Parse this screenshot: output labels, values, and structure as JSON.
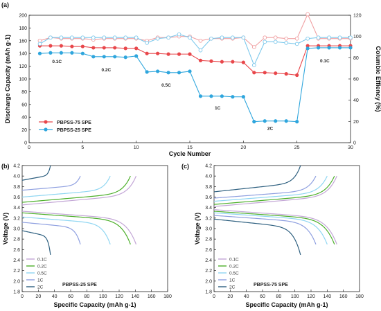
{
  "chart_data": [
    {
      "panel": "(a)",
      "type": "line",
      "xlabel": "Cycle Number",
      "ylabel": "Discharge Capacity (mAh g-1)",
      "y2label": "Columbic Effiency (%)",
      "xlim": [
        0,
        30
      ],
      "ylim": [
        0,
        200
      ],
      "y2lim": [
        0,
        120
      ],
      "xticks": [
        0,
        5,
        10,
        15,
        20,
        25,
        30
      ],
      "yticks": [
        0,
        20,
        40,
        60,
        80,
        100,
        120,
        140,
        160,
        180,
        200
      ],
      "y2ticks": [
        0,
        20,
        40,
        60,
        80,
        100,
        120
      ],
      "x": [
        1,
        2,
        3,
        4,
        5,
        6,
        7,
        8,
        9,
        10,
        11,
        12,
        13,
        14,
        15,
        16,
        17,
        18,
        19,
        20,
        21,
        22,
        23,
        24,
        25,
        26,
        27,
        28,
        29,
        30
      ],
      "series": [
        {
          "name": "PBPSS-75 SPE",
          "color": "#e8474b",
          "axis": "left",
          "marker": "filled",
          "values": [
            152,
            152,
            152,
            151,
            151,
            149,
            149,
            149,
            148,
            148,
            140,
            140,
            139,
            139,
            139,
            129,
            128,
            127,
            127,
            126,
            110,
            110,
            109,
            108,
            106,
            152,
            152,
            152,
            152,
            152
          ]
        },
        {
          "name": "PBPSS-25 SPE",
          "color": "#2fa6dd",
          "axis": "left",
          "marker": "filled",
          "values": [
            140,
            141,
            141,
            141,
            140,
            135,
            135,
            135,
            134,
            136,
            111,
            112,
            110,
            110,
            112,
            73,
            73,
            73,
            72,
            72,
            33,
            34,
            34,
            34,
            33,
            148,
            149,
            149,
            149,
            149
          ]
        },
        {
          "name": "",
          "color": "#f0a0a2",
          "axis": "right",
          "marker": "hollow",
          "values": [
            96,
            99,
            98,
            98,
            98,
            97,
            98,
            98,
            98,
            98,
            96,
            99,
            99,
            100,
            100,
            96,
            98,
            98,
            98,
            99,
            90,
            99,
            99,
            98,
            98,
            121,
            98,
            98,
            98,
            98
          ]
        },
        {
          "name": "",
          "color": "#7cc8ec",
          "axis": "right",
          "marker": "hollow",
          "values": [
            93,
            99,
            99,
            99,
            99,
            99,
            99,
            99,
            99,
            99,
            94,
            98,
            99,
            102,
            99,
            87,
            98,
            99,
            99,
            99,
            73,
            95,
            95,
            94,
            93,
            98,
            99,
            99,
            99,
            99
          ]
        }
      ],
      "legend_position": "lower-left",
      "annotations": [
        "0.1C",
        "0.2C",
        "0.5C",
        "1C",
        "2C",
        "0.1C"
      ]
    },
    {
      "panel": "(b)",
      "type": "line",
      "title": "PBPSS-25 SPE",
      "xlabel": "Specific Capacity (mAh g-1)",
      "ylabel": "Voltage (V)",
      "xlim": [
        0,
        180
      ],
      "ylim": [
        1.8,
        4.2
      ],
      "xticks": [
        0,
        20,
        40,
        60,
        80,
        100,
        120,
        140,
        160,
        180
      ],
      "yticks": [
        1.8,
        2.0,
        2.2,
        2.4,
        2.6,
        2.8,
        3.0,
        3.2,
        3.4,
        3.6,
        3.8,
        4.0,
        4.2
      ],
      "legend_position": "lower-left",
      "series": [
        {
          "name": "0.1C",
          "color": "#c3a6d6",
          "capacity": 141,
          "charge_plateau": 3.45,
          "charge_end": 4.0,
          "discharge_plateau": 3.33,
          "discharge_end": 2.7
        },
        {
          "name": "0.2C",
          "color": "#4caf2a",
          "capacity": 134,
          "charge_plateau": 3.5,
          "charge_end": 4.0,
          "discharge_plateau": 3.3,
          "discharge_end": 2.7
        },
        {
          "name": "0.5C",
          "color": "#8fd6f2",
          "capacity": 109,
          "charge_plateau": 3.6,
          "charge_end": 4.0,
          "discharge_plateau": 3.22,
          "discharge_end": 2.7
        },
        {
          "name": "1C",
          "color": "#8e9fe0",
          "capacity": 72,
          "charge_plateau": 3.73,
          "charge_end": 4.0,
          "discharge_plateau": 3.12,
          "discharge_end": 2.7
        },
        {
          "name": "2C",
          "color": "#2d5f7f",
          "capacity": 35,
          "charge_plateau": 3.92,
          "charge_end": 4.2,
          "discharge_plateau": 2.96,
          "discharge_end": 2.5
        }
      ]
    },
    {
      "panel": "(c)",
      "type": "line",
      "title": "PBPSS-75 SPE",
      "xlabel": "Specific Capacity (mAh g-1)",
      "ylabel": "Voltage (V)",
      "xlim": [
        0,
        180
      ],
      "ylim": [
        1.8,
        4.2
      ],
      "xticks": [
        0,
        20,
        40,
        60,
        80,
        100,
        120,
        140,
        160,
        180
      ],
      "yticks": [
        1.8,
        2.0,
        2.2,
        2.4,
        2.6,
        2.8,
        3.0,
        3.2,
        3.4,
        3.6,
        3.8,
        4.0,
        4.2
      ],
      "legend_position": "lower-left",
      "series": [
        {
          "name": "0.1C",
          "color": "#c3a6d6",
          "capacity": 152,
          "charge_plateau": 3.42,
          "charge_end": 4.0,
          "discharge_plateau": 3.36,
          "discharge_end": 2.7
        },
        {
          "name": "0.2C",
          "color": "#4caf2a",
          "capacity": 149,
          "charge_plateau": 3.46,
          "charge_end": 4.0,
          "discharge_plateau": 3.33,
          "discharge_end": 2.7
        },
        {
          "name": "0.5C",
          "color": "#8fd6f2",
          "capacity": 140,
          "charge_plateau": 3.52,
          "charge_end": 4.0,
          "discharge_plateau": 3.3,
          "discharge_end": 2.7
        },
        {
          "name": "1C",
          "color": "#8e9fe0",
          "capacity": 126,
          "charge_plateau": 3.58,
          "charge_end": 4.0,
          "discharge_plateau": 3.25,
          "discharge_end": 2.7
        },
        {
          "name": "2C",
          "color": "#2d5f7f",
          "capacity": 107,
          "charge_plateau": 3.7,
          "charge_end": 4.2,
          "discharge_plateau": 3.18,
          "discharge_end": 2.5
        }
      ]
    }
  ]
}
